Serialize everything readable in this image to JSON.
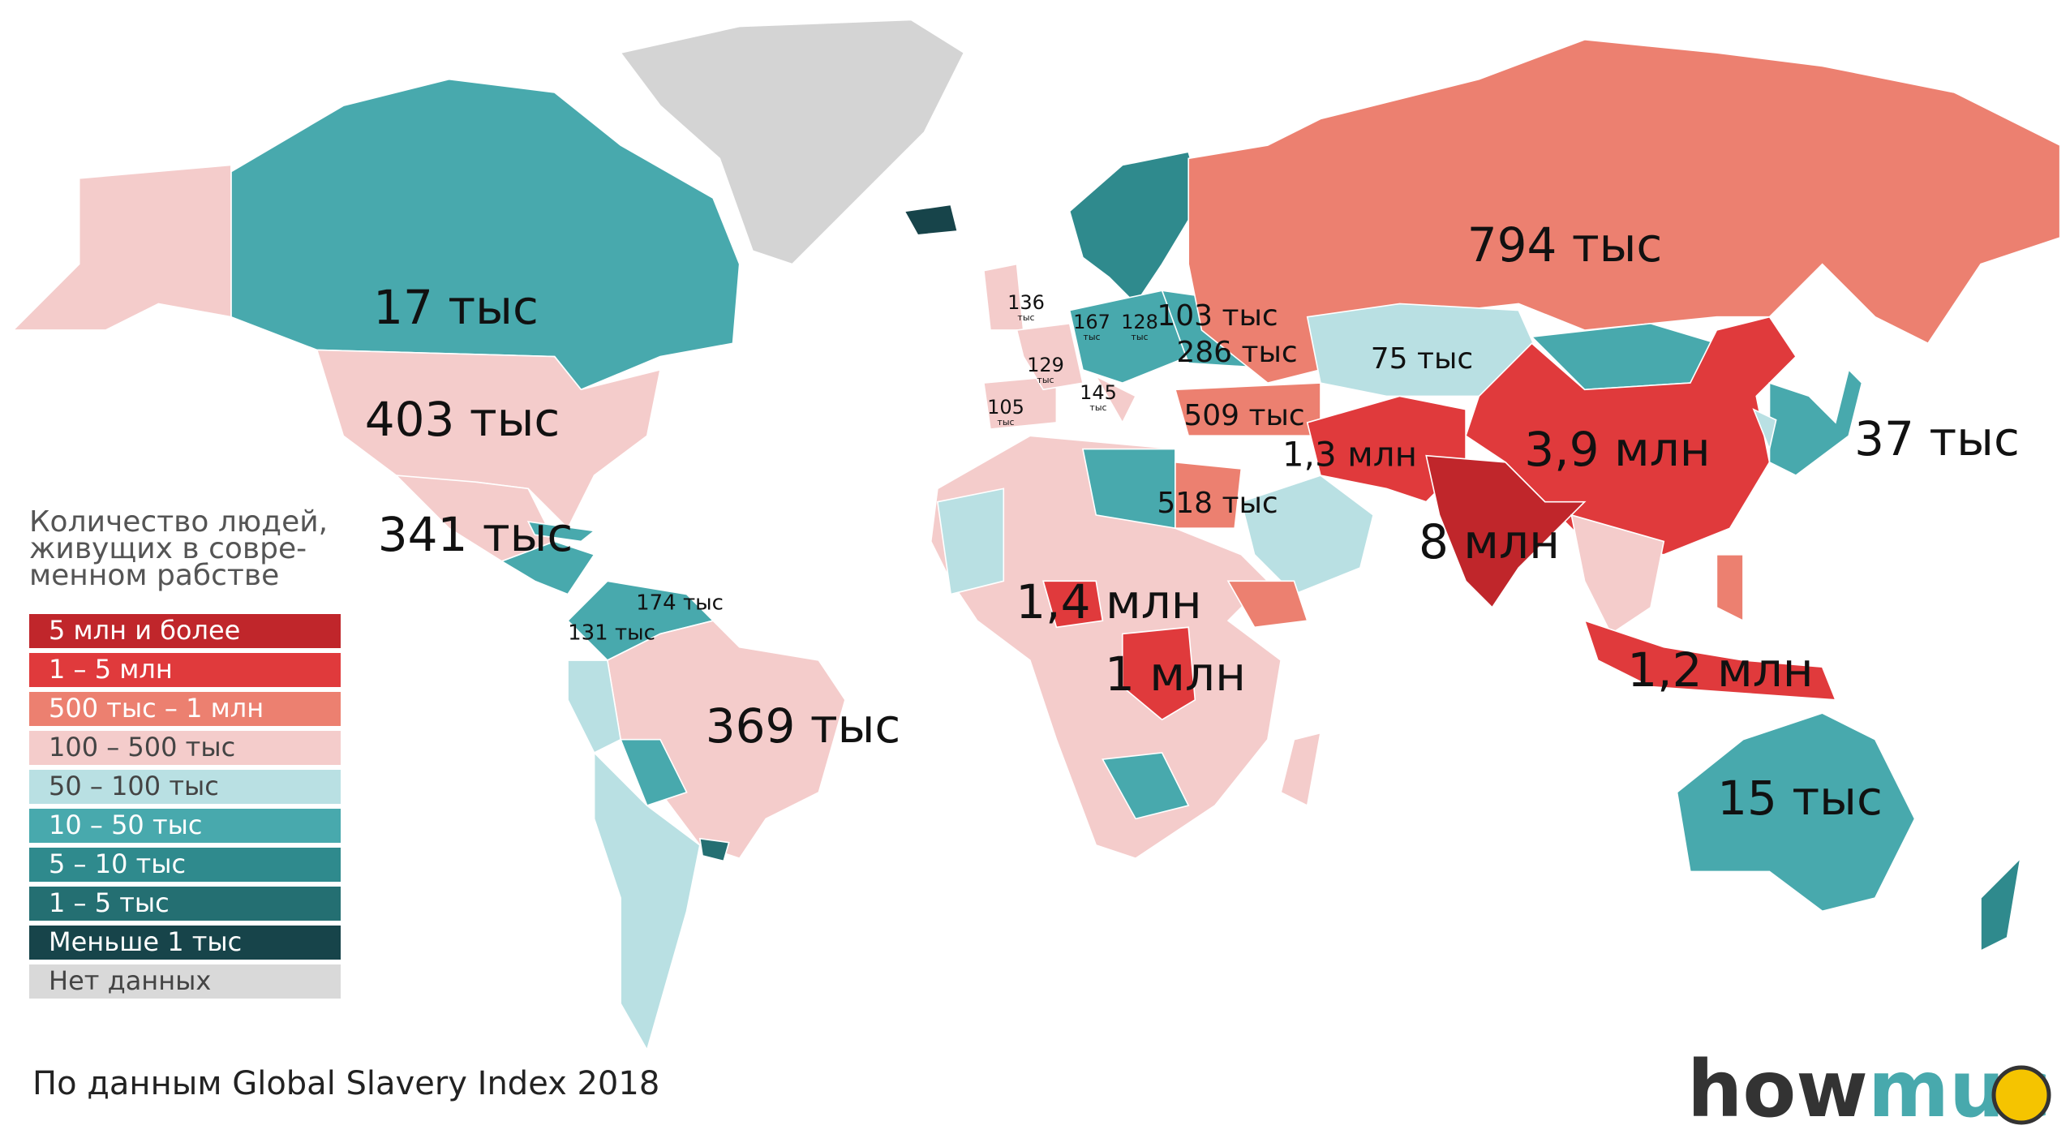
{
  "legend": {
    "title_lines": [
      "Количество людей,",
      "живущих в совре-",
      "менном рабстве"
    ],
    "items": [
      {
        "label": "5 млн и более",
        "color": "#c0262b"
      },
      {
        "label": "1 – 5 млн",
        "color": "#e03a3c"
      },
      {
        "label": "500 тыс – 1 млн",
        "color": "#ec8070"
      },
      {
        "label": "100 – 500 тыс",
        "color": "#f4cccb"
      },
      {
        "label": "50 – 100 тыс",
        "color": "#b9e0e3"
      },
      {
        "label": "10 – 50 тыс",
        "color": "#48a9ad"
      },
      {
        "label": "5 – 10 тыс",
        "color": "#2f8a8d"
      },
      {
        "label": "1 – 5 тыс",
        "color": "#246f72"
      },
      {
        "label": "Меньше 1 тыс",
        "color": "#17444a"
      },
      {
        "label": "Нет данных",
        "color": "#d9d9d9"
      }
    ]
  },
  "map_labels": [
    "794 тыс",
    "17 тыс",
    "403 тыс",
    "341 тыс",
    "369 тыс",
    "3,9 млн",
    "8 млн",
    "1,4 млн",
    "1 млн",
    "1,2 млн",
    "15 тыс",
    "37 тыс",
    "1,3 млн",
    "518 тыс",
    "509 тыс",
    "286 тыс",
    "75 тыс",
    "103 тыс",
    "174 тыс",
    "131 тыс"
  ],
  "small_labels": [
    {
      "number": "136",
      "unit": "тыс"
    },
    {
      "number": "167",
      "unit": "тыс"
    },
    {
      "number": "128",
      "unit": "тыс"
    },
    {
      "number": "129",
      "unit": "тыс"
    },
    {
      "number": "145",
      "unit": "тыс"
    },
    {
      "number": "105",
      "unit": "тыс"
    }
  ],
  "source": "По данным Global Slavery Index 2018",
  "logo": {
    "first": "how",
    "second": "muc"
  }
}
